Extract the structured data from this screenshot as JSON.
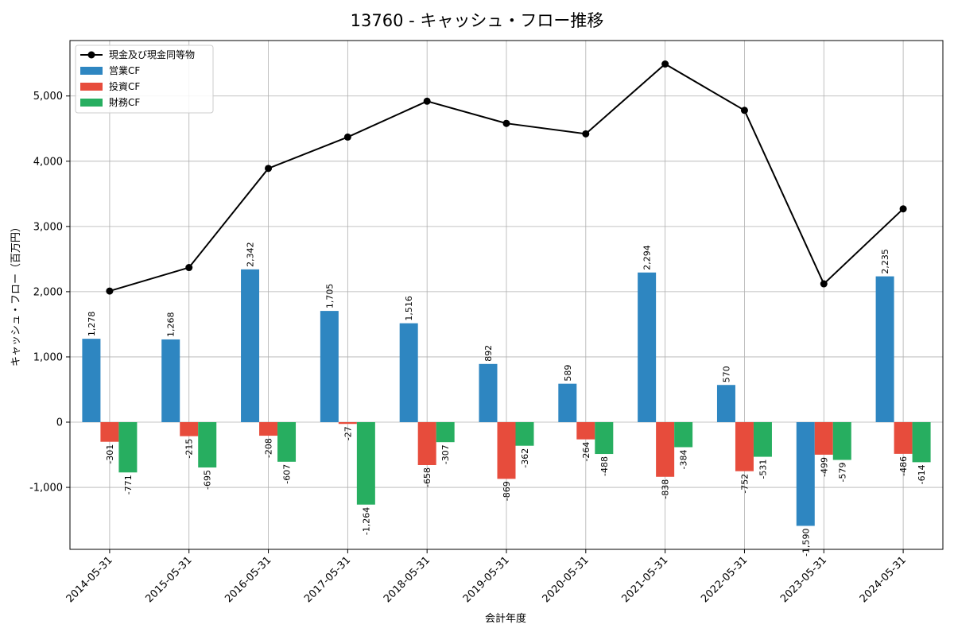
{
  "chart_data": {
    "type": "bar",
    "title": "13760 - キャッシュ・フロー推移",
    "xlabel": "会計年度",
    "ylabel": "キャッシュ・フロー（百万円）",
    "categories": [
      "2014-05-31",
      "2015-05-31",
      "2016-05-31",
      "2017-05-31",
      "2018-05-31",
      "2019-05-31",
      "2020-05-31",
      "2021-05-31",
      "2022-05-31",
      "2023-05-31",
      "2024-05-31"
    ],
    "ylim": [
      -1950,
      5850
    ],
    "yticks": [
      -1000,
      0,
      1000,
      2000,
      3000,
      4000,
      5000
    ],
    "ytick_labels": [
      "-1,000",
      "0",
      "1,000",
      "2,000",
      "3,000",
      "4,000",
      "5,000"
    ],
    "grid": true,
    "legend_position": "top-left",
    "series": [
      {
        "name": "営業CF",
        "kind": "bar",
        "color": "#2e86c1",
        "values": [
          1278,
          1268,
          2342,
          1705,
          1516,
          892,
          589,
          2294,
          570,
          -1590,
          2235
        ],
        "labels": [
          "1,278",
          "1,268",
          "2,342",
          "1,705",
          "1,516",
          "892",
          "589",
          "2,294",
          "570",
          "-1,590",
          "2,235"
        ]
      },
      {
        "name": "投資CF",
        "kind": "bar",
        "color": "#e74c3c",
        "values": [
          -301,
          -215,
          -208,
          -27,
          -658,
          -869,
          -264,
          -838,
          -752,
          -499,
          -486
        ],
        "labels": [
          "-301",
          "-215",
          "-208",
          "-27",
          "-658",
          "-869",
          "-264",
          "-838",
          "-752",
          "-499",
          "-486"
        ]
      },
      {
        "name": "財務CF",
        "kind": "bar",
        "color": "#27ae60",
        "values": [
          -771,
          -695,
          -607,
          -1264,
          -307,
          -362,
          -488,
          -384,
          -531,
          -579,
          -614
        ],
        "labels": [
          "-771",
          "-695",
          "-607",
          "-1,264",
          "-307",
          "-362",
          "-488",
          "-384",
          "-531",
          "-579",
          "-614"
        ]
      },
      {
        "name": "現金及び現金同等物",
        "kind": "line",
        "color": "#000000",
        "values": [
          2010,
          2370,
          3890,
          4370,
          4920,
          4580,
          4420,
          5490,
          4780,
          2120,
          3270
        ]
      }
    ]
  }
}
